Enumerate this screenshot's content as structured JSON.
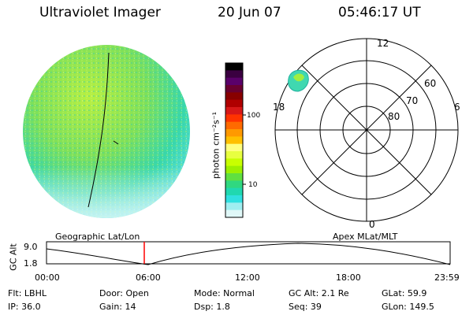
{
  "header": {
    "title": "Ultraviolet Imager",
    "date": "20 Jun 07",
    "time": "05:46:17 UT"
  },
  "colorbar": {
    "unit_label": "photon cm⁻²s⁻¹",
    "tick_labels": [
      "100",
      "10"
    ],
    "colors": [
      "#000000",
      "#3a0040",
      "#5a006a",
      "#6a0030",
      "#880000",
      "#b00000",
      "#d81818",
      "#ff3300",
      "#ff6a00",
      "#ff9900",
      "#ffc000",
      "#ffff80",
      "#e8ff40",
      "#c8ff00",
      "#9cf000",
      "#60e040",
      "#30d880",
      "#20d8b0",
      "#30e0e0",
      "#a0eef0",
      "#e0f8f8"
    ]
  },
  "polar": {
    "mlt_labels": [
      "12",
      "18",
      "6",
      "0"
    ],
    "lat_labels": [
      "60",
      "70",
      "80"
    ]
  },
  "timeline": {
    "left_title": "Geographic Lat/Lon",
    "right_title": "Apex MLat/MLT",
    "axis_label": "GC Alt",
    "y_labels": [
      "9.0",
      "1.8"
    ],
    "x_labels": [
      "00:00",
      "06:00",
      "12:00",
      "18:00",
      "23:59"
    ],
    "marker_color": "#ff0000"
  },
  "footer": {
    "filter": "Flt: LBHL",
    "ip": "IP: 36.0",
    "door": "Door: Open",
    "gain": "Gain: 14",
    "mode": "Mode: Normal",
    "dsp": "Dsp:    1.8",
    "gc_alt": "GC Alt: 2.1 Re",
    "seq": "Seq: 39",
    "glat": "GLat:   59.9",
    "glon": "GLon: 149.5"
  }
}
